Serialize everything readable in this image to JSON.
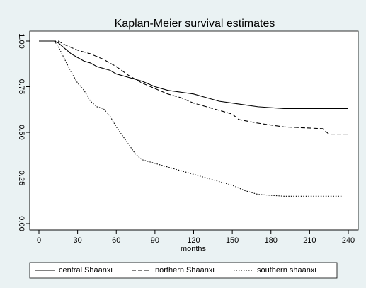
{
  "chart_data": {
    "type": "line",
    "title": "Kaplan-Meier survival estimates",
    "xlabel": "months",
    "xlim": [
      0,
      240
    ],
    "ylim": [
      0,
      1
    ],
    "xticks": [
      0,
      30,
      60,
      90,
      120,
      150,
      180,
      210,
      240
    ],
    "yticks": [
      {
        "value": 0,
        "label": "0.00"
      },
      {
        "value": 0.25,
        "label": "0.25"
      },
      {
        "value": 0.5,
        "label": "0.50"
      },
      {
        "value": 0.75,
        "label": "0.75"
      },
      {
        "value": 1,
        "label": "1.00"
      }
    ],
    "legend": "bottom",
    "series": [
      {
        "name": "central Shaanxi",
        "color": "#000000",
        "dash": "solid",
        "x": [
          0,
          12,
          15,
          20,
          25,
          30,
          35,
          40,
          45,
          50,
          55,
          60,
          70,
          80,
          90,
          100,
          110,
          120,
          130,
          140,
          150,
          160,
          170,
          190,
          240
        ],
        "values": [
          1,
          1,
          0.99,
          0.96,
          0.93,
          0.91,
          0.89,
          0.88,
          0.86,
          0.85,
          0.84,
          0.82,
          0.8,
          0.78,
          0.75,
          0.73,
          0.72,
          0.71,
          0.69,
          0.67,
          0.66,
          0.65,
          0.64,
          0.63,
          0.63
        ]
      },
      {
        "name": "northern Shaanxi",
        "color": "#000000",
        "dash": "dash",
        "x": [
          0,
          15,
          20,
          30,
          40,
          50,
          60,
          70,
          80,
          90,
          100,
          110,
          120,
          130,
          140,
          150,
          155,
          170,
          180,
          190,
          220,
          225,
          240
        ],
        "values": [
          1,
          1,
          0.98,
          0.95,
          0.93,
          0.9,
          0.86,
          0.81,
          0.77,
          0.74,
          0.71,
          0.69,
          0.66,
          0.64,
          0.62,
          0.6,
          0.57,
          0.55,
          0.54,
          0.53,
          0.52,
          0.49,
          0.49
        ]
      },
      {
        "name": "southern shaanxi",
        "color": "#000000",
        "dash": "dot",
        "x": [
          0,
          12,
          15,
          20,
          25,
          30,
          35,
          40,
          45,
          50,
          55,
          60,
          65,
          70,
          75,
          80,
          90,
          100,
          110,
          120,
          130,
          140,
          150,
          160,
          170,
          190,
          235
        ],
        "values": [
          1,
          1,
          0.97,
          0.9,
          0.83,
          0.77,
          0.73,
          0.67,
          0.64,
          0.63,
          0.59,
          0.53,
          0.48,
          0.43,
          0.38,
          0.35,
          0.33,
          0.31,
          0.29,
          0.27,
          0.25,
          0.23,
          0.21,
          0.18,
          0.16,
          0.15,
          0.15
        ]
      }
    ]
  }
}
